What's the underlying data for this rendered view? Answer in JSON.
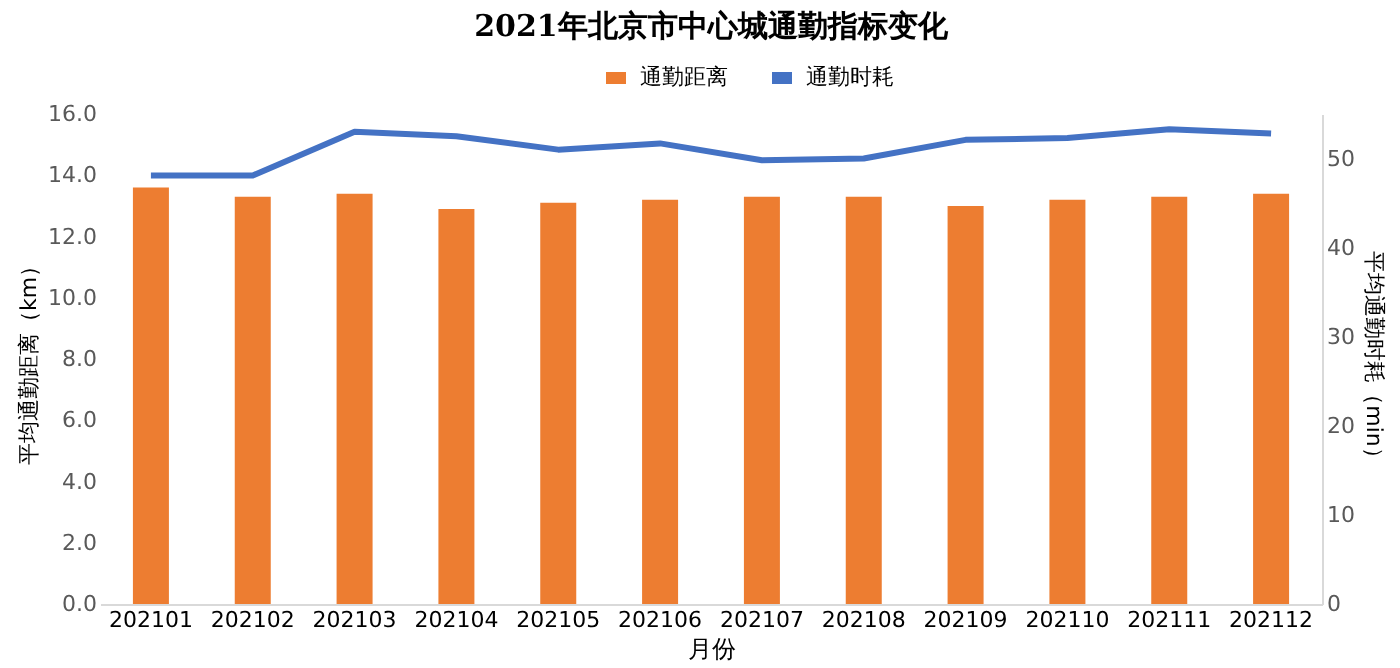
{
  "chart_data": {
    "type": "bar",
    "title": "2021年北京市中心城通勤指标变化",
    "xlabel": "月份",
    "ylabel": "平均通勤距离（km）",
    "y2label": "平均通勤时耗（min）",
    "categories": [
      "202101",
      "202102",
      "202103",
      "202104",
      "202105",
      "202106",
      "202107",
      "202108",
      "202109",
      "202110",
      "202111",
      "202112"
    ],
    "series": [
      {
        "name": "通勤距离",
        "color": "#ed7d31",
        "values": [
          13.6,
          13.3,
          13.4,
          12.9,
          13.1,
          13.2,
          13.3,
          13.3,
          13.0,
          13.2,
          13.3,
          13.4
        ]
      },
      {
        "name": "通勤时耗",
        "type": "line",
        "axis": "y2",
        "color": "#4472c4",
        "values": [
          48.1,
          48.1,
          53.0,
          52.5,
          51.0,
          51.7,
          49.8,
          50.0,
          52.1,
          52.3,
          53.3,
          52.8
        ]
      }
    ],
    "ylim": [
      0,
      16
    ],
    "yticks": [
      {
        "value": 0,
        "label": "0.0"
      },
      {
        "value": 2,
        "label": "2.0"
      },
      {
        "value": 4,
        "label": "4.0"
      },
      {
        "value": 6,
        "label": "6.0"
      },
      {
        "value": 8,
        "label": "8.0"
      },
      {
        "value": 10,
        "label": "10.0"
      },
      {
        "value": 12,
        "label": "12.0"
      },
      {
        "value": 14,
        "label": "14.0"
      },
      {
        "value": 16,
        "label": "16.0"
      }
    ],
    "y2lim": [
      0,
      55
    ],
    "y2ticks": [
      0,
      10,
      20,
      30,
      40,
      50
    ],
    "legend": "top",
    "grid": false,
    "marker": "none",
    "line_style": "solid"
  }
}
